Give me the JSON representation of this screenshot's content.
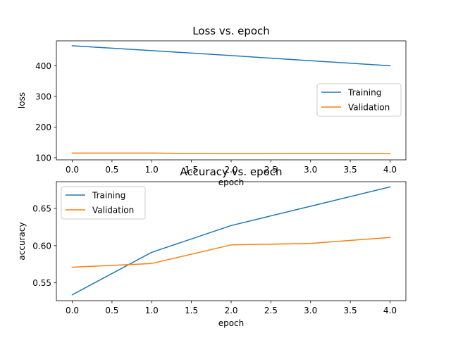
{
  "chart_data": [
    {
      "type": "line",
      "title": "Loss vs. epoch",
      "xlabel": "epoch",
      "ylabel": "loss",
      "x": [
        0,
        1,
        2,
        3,
        4
      ],
      "xlim": [
        -0.2,
        4.2
      ],
      "ylim": [
        93,
        481
      ],
      "xticks": [
        0,
        0.5,
        1,
        1.5,
        2,
        2.5,
        3,
        3.5,
        4
      ],
      "xtick_labels": [
        "0.0",
        "0.5",
        "1.0",
        "1.5",
        "2.0",
        "2.5",
        "3.0",
        "3.5",
        "4.0"
      ],
      "yticks": [
        100,
        200,
        300,
        400
      ],
      "ytick_labels": [
        "100",
        "200",
        "300",
        "400"
      ],
      "grid": false,
      "legend_position": "center-right",
      "series": [
        {
          "name": "Training",
          "color": "#1f77b4",
          "values": [
            465,
            449,
            433,
            416,
            400
          ]
        },
        {
          "name": "Validation",
          "color": "#ff7f0e",
          "values": [
            115,
            115,
            113,
            114,
            113
          ]
        }
      ]
    },
    {
      "type": "line",
      "title": "Accuracy vs. epoch",
      "xlabel": "epoch",
      "ylabel": "accuracy",
      "x": [
        0,
        1,
        2,
        3,
        4
      ],
      "xlim": [
        -0.2,
        4.2
      ],
      "ylim": [
        0.526,
        0.686
      ],
      "xticks": [
        0,
        0.5,
        1,
        1.5,
        2,
        2.5,
        3,
        3.5,
        4
      ],
      "xtick_labels": [
        "0.0",
        "0.5",
        "1.0",
        "1.5",
        "2.0",
        "2.5",
        "3.0",
        "3.5",
        "4.0"
      ],
      "yticks": [
        0.55,
        0.6,
        0.65
      ],
      "ytick_labels": [
        "0.55",
        "0.60",
        "0.65"
      ],
      "grid": false,
      "legend_position": "upper-left",
      "series": [
        {
          "name": "Training",
          "color": "#1f77b4",
          "values": [
            0.534,
            0.591,
            0.627,
            0.653,
            0.679
          ]
        },
        {
          "name": "Validation",
          "color": "#ff7f0e",
          "values": [
            0.571,
            0.576,
            0.601,
            0.603,
            0.611
          ]
        }
      ]
    }
  ]
}
